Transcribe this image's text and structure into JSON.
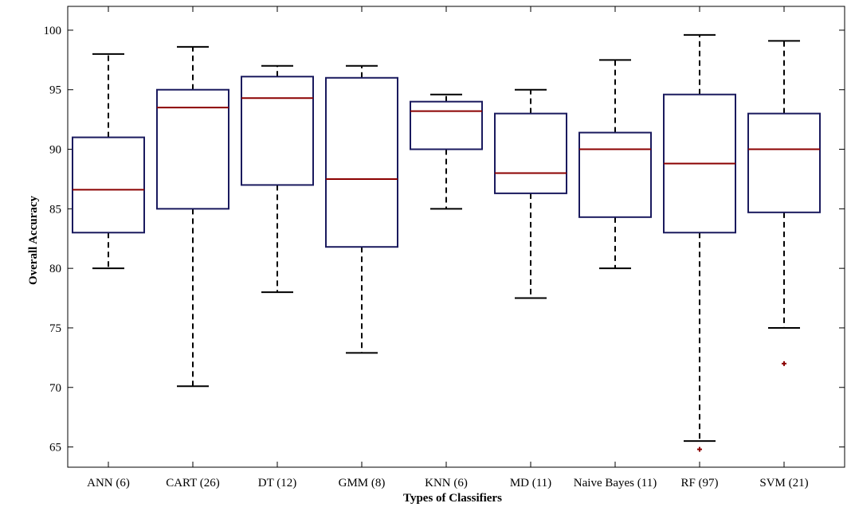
{
  "chart_data": {
    "type": "boxplot",
    "title": "",
    "xlabel": "Types of Classifiers",
    "ylabel": "Overall Accuracy",
    "ylim": [
      63.3,
      102
    ],
    "yticks": [
      65,
      70,
      75,
      80,
      85,
      90,
      95,
      100
    ],
    "grid": false,
    "categories": [
      "ANN (6)",
      "CART (26)",
      "DT (12)",
      "GMM (8)",
      "KNN (6)",
      "MD (11)",
      "Naive Bayes (11)",
      "RF (97)",
      "SVM (21)"
    ],
    "boxes": [
      {
        "whisker_low": 80,
        "q1": 83,
        "median": 86.6,
        "q3": 91,
        "whisker_high": 98,
        "outliers": []
      },
      {
        "whisker_low": 70.1,
        "q1": 85,
        "median": 93.5,
        "q3": 95,
        "whisker_high": 98.6,
        "outliers": []
      },
      {
        "whisker_low": 78,
        "q1": 87,
        "median": 94.3,
        "q3": 96.1,
        "whisker_high": 97,
        "outliers": []
      },
      {
        "whisker_low": 72.9,
        "q1": 81.8,
        "median": 87.5,
        "q3": 96,
        "whisker_high": 97,
        "outliers": []
      },
      {
        "whisker_low": 85,
        "q1": 90,
        "median": 93.2,
        "q3": 94,
        "whisker_high": 94.6,
        "outliers": []
      },
      {
        "whisker_low": 77.5,
        "q1": 86.3,
        "median": 88,
        "q3": 93,
        "whisker_high": 95,
        "outliers": []
      },
      {
        "whisker_low": 80,
        "q1": 84.3,
        "median": 90,
        "q3": 91.4,
        "whisker_high": 97.5,
        "outliers": []
      },
      {
        "whisker_low": 65.5,
        "q1": 83,
        "median": 88.8,
        "q3": 94.6,
        "whisker_high": 99.6,
        "outliers": [
          64.8
        ]
      },
      {
        "whisker_low": 75,
        "q1": 84.7,
        "median": 90,
        "q3": 93,
        "whisker_high": 99.1,
        "outliers": [
          72
        ]
      }
    ],
    "colors": {
      "box": "#1a1a5e",
      "median": "#8b0000",
      "whisker": "#000000",
      "outlier": "#8b0000"
    }
  }
}
